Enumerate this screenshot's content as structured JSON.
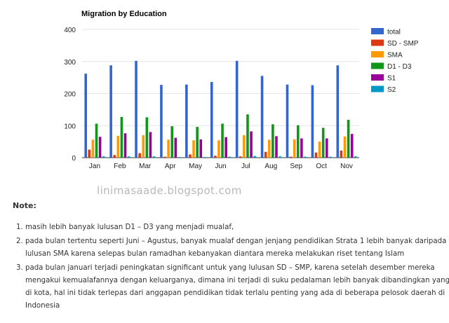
{
  "chart_data": {
    "type": "bar",
    "title": "Migration by Education",
    "categories": [
      "Jan",
      "Feb",
      "Mar",
      "Apr",
      "May",
      "Jun",
      "Jul",
      "Aug",
      "Sep",
      "Oct",
      "Nov"
    ],
    "ylim": [
      0,
      400
    ],
    "yticks": [
      0,
      100,
      200,
      300,
      400
    ],
    "grid": true,
    "legend_position": "right",
    "series": [
      {
        "name": "total",
        "color": "#3366cc",
        "values": [
          262,
          288,
          302,
          227,
          228,
          236,
          302,
          255,
          228,
          226,
          288
        ]
      },
      {
        "name": "SD - SMP",
        "color": "#dc3912",
        "values": [
          25,
          8,
          14,
          3,
          10,
          6,
          4,
          18,
          3,
          16,
          22
        ]
      },
      {
        "name": "SMA",
        "color": "#ff9900",
        "values": [
          56,
          68,
          70,
          56,
          54,
          54,
          70,
          56,
          57,
          50,
          66
        ]
      },
      {
        "name": "D1 - D3",
        "color": "#109618",
        "values": [
          106,
          127,
          126,
          98,
          96,
          106,
          135,
          104,
          101,
          93,
          118
        ]
      },
      {
        "name": "S1",
        "color": "#990099",
        "values": [
          65,
          76,
          80,
          62,
          57,
          64,
          82,
          67,
          60,
          60,
          74
        ]
      },
      {
        "name": "S2",
        "color": "#0099c6",
        "values": [
          4,
          4,
          4,
          2,
          2,
          3,
          5,
          4,
          3,
          3,
          4
        ]
      }
    ]
  },
  "watermark": "linimasaade.blogspot.com",
  "note_heading": "Note:",
  "notes": [
    "masih lebih banyak lulusan D1 – D3 yang menjadi mualaf,",
    "pada bulan tertentu seperti Juni – Agustus, banyak mualaf dengan jenjang pendidikan Strata 1 lebih banyak daripada lulusan SMA karena selepas bulan ramadhan kebanyakan diantara mereka melakukan riset tentang Islam",
    "pada bulan januari terjadi peningkatan significant untuk yang lulusan SD – SMP, karena setelah desember mereka mengakui kemualafannya dengan keluarganya, dimana ini terjadi di suku pedalaman lebih banyak dibandingkan yang di kota, hal ini tidak terlepas dari anggapan pendidikan tidak terlalu penting yang ada di beberapa pelosok daerah di Indonesia"
  ]
}
